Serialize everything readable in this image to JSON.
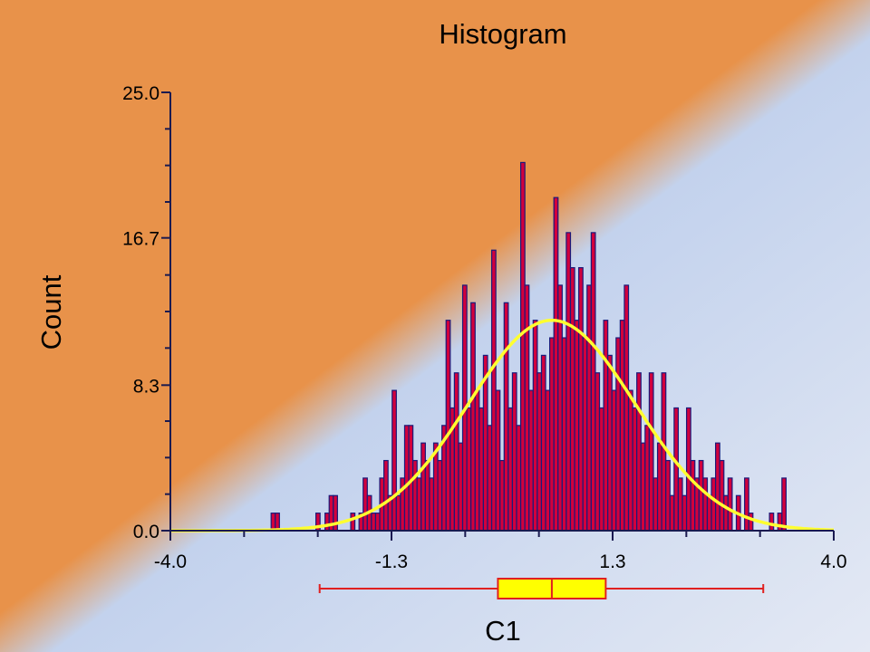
{
  "chart_data": {
    "type": "bar",
    "title": "Histogram",
    "xlabel": "C1",
    "ylabel": "Count",
    "xlim": [
      -4.0,
      4.0
    ],
    "ylim": [
      0.0,
      25.0
    ],
    "x_ticks": [
      "-4.0",
      "-1.3",
      "1.3",
      "4.0"
    ],
    "y_ticks": [
      "0.0",
      "8.3",
      "16.7",
      "25.0"
    ],
    "grid": false,
    "series": [
      {
        "type": "histogram",
        "bins": [
          {
            "x": -2.76,
            "y": 1
          },
          {
            "x": -2.71,
            "y": 1
          },
          {
            "x": -2.22,
            "y": 1
          },
          {
            "x": -2.11,
            "y": 1
          },
          {
            "x": -2.06,
            "y": 2
          },
          {
            "x": -2.01,
            "y": 2
          },
          {
            "x": -1.8,
            "y": 1
          },
          {
            "x": -1.7,
            "y": 1
          },
          {
            "x": -1.65,
            "y": 3
          },
          {
            "x": -1.6,
            "y": 2
          },
          {
            "x": -1.55,
            "y": 1
          },
          {
            "x": -1.5,
            "y": 1
          },
          {
            "x": -1.45,
            "y": 3
          },
          {
            "x": -1.4,
            "y": 4
          },
          {
            "x": -1.35,
            "y": 2
          },
          {
            "x": -1.3,
            "y": 8
          },
          {
            "x": -1.25,
            "y": 2
          },
          {
            "x": -1.2,
            "y": 3
          },
          {
            "x": -1.15,
            "y": 6
          },
          {
            "x": -1.1,
            "y": 6
          },
          {
            "x": -1.05,
            "y": 4
          },
          {
            "x": -1.0,
            "y": 3
          },
          {
            "x": -0.95,
            "y": 5
          },
          {
            "x": -0.9,
            "y": 4
          },
          {
            "x": -0.85,
            "y": 3
          },
          {
            "x": -0.8,
            "y": 5
          },
          {
            "x": -0.75,
            "y": 4
          },
          {
            "x": -0.7,
            "y": 6
          },
          {
            "x": -0.65,
            "y": 12
          },
          {
            "x": -0.6,
            "y": 7
          },
          {
            "x": -0.55,
            "y": 9
          },
          {
            "x": -0.5,
            "y": 5
          },
          {
            "x": -0.45,
            "y": 14
          },
          {
            "x": -0.4,
            "y": 7
          },
          {
            "x": -0.35,
            "y": 13
          },
          {
            "x": -0.3,
            "y": 8
          },
          {
            "x": -0.25,
            "y": 7
          },
          {
            "x": -0.2,
            "y": 10
          },
          {
            "x": -0.15,
            "y": 6
          },
          {
            "x": -0.1,
            "y": 16
          },
          {
            "x": -0.05,
            "y": 8
          },
          {
            "x": 0.0,
            "y": 4
          },
          {
            "x": 0.05,
            "y": 13
          },
          {
            "x": 0.1,
            "y": 7
          },
          {
            "x": 0.15,
            "y": 9
          },
          {
            "x": 0.2,
            "y": 6
          },
          {
            "x": 0.25,
            "y": 21
          },
          {
            "x": 0.3,
            "y": 14
          },
          {
            "x": 0.35,
            "y": 8
          },
          {
            "x": 0.4,
            "y": 12
          },
          {
            "x": 0.45,
            "y": 9
          },
          {
            "x": 0.5,
            "y": 10
          },
          {
            "x": 0.55,
            "y": 8
          },
          {
            "x": 0.6,
            "y": 11
          },
          {
            "x": 0.65,
            "y": 19
          },
          {
            "x": 0.7,
            "y": 14
          },
          {
            "x": 0.75,
            "y": 11
          },
          {
            "x": 0.8,
            "y": 17
          },
          {
            "x": 0.85,
            "y": 15
          },
          {
            "x": 0.9,
            "y": 12
          },
          {
            "x": 0.95,
            "y": 15
          },
          {
            "x": 1.0,
            "y": 11
          },
          {
            "x": 1.05,
            "y": 14
          },
          {
            "x": 1.1,
            "y": 17
          },
          {
            "x": 1.15,
            "y": 9
          },
          {
            "x": 1.2,
            "y": 7
          },
          {
            "x": 1.25,
            "y": 12
          },
          {
            "x": 1.3,
            "y": 10
          },
          {
            "x": 1.35,
            "y": 8
          },
          {
            "x": 1.4,
            "y": 11
          },
          {
            "x": 1.45,
            "y": 12
          },
          {
            "x": 1.5,
            "y": 14
          },
          {
            "x": 1.55,
            "y": 8
          },
          {
            "x": 1.6,
            "y": 7
          },
          {
            "x": 1.65,
            "y": 9
          },
          {
            "x": 1.7,
            "y": 5
          },
          {
            "x": 1.75,
            "y": 6
          },
          {
            "x": 1.8,
            "y": 9
          },
          {
            "x": 1.85,
            "y": 3
          },
          {
            "x": 1.9,
            "y": 5
          },
          {
            "x": 1.95,
            "y": 9
          },
          {
            "x": 2.0,
            "y": 4
          },
          {
            "x": 2.05,
            "y": 2
          },
          {
            "x": 2.1,
            "y": 7
          },
          {
            "x": 2.15,
            "y": 3
          },
          {
            "x": 2.2,
            "y": 2
          },
          {
            "x": 2.25,
            "y": 7
          },
          {
            "x": 2.3,
            "y": 4
          },
          {
            "x": 2.35,
            "y": 3
          },
          {
            "x": 2.4,
            "y": 4
          },
          {
            "x": 2.45,
            "y": 3
          },
          {
            "x": 2.5,
            "y": 2
          },
          {
            "x": 2.55,
            "y": 3
          },
          {
            "x": 2.6,
            "y": 5
          },
          {
            "x": 2.65,
            "y": 4
          },
          {
            "x": 2.7,
            "y": 2
          },
          {
            "x": 2.75,
            "y": 3
          },
          {
            "x": 2.85,
            "y": 2
          },
          {
            "x": 2.95,
            "y": 3
          },
          {
            "x": 3.0,
            "y": 1
          },
          {
            "x": 3.25,
            "y": 1
          },
          {
            "x": 3.35,
            "y": 1
          },
          {
            "x": 3.4,
            "y": 3
          }
        ],
        "bin_width": 0.05,
        "color": "#d2003c",
        "outline_color": "#1a1a7a"
      },
      {
        "type": "normal_curve",
        "mean": 0.6,
        "sd": 1.0,
        "peak": 12.0,
        "color": "#ffff30"
      }
    ],
    "boxplot": {
      "min": -2.2,
      "q1": -0.05,
      "median": 0.6,
      "q3": 1.25,
      "max": 3.15,
      "box_color": "#ffff00",
      "whisker_color": "#e02020"
    },
    "background": {
      "top_left": "#e8924a",
      "bottom_right": "#c6d4ee"
    }
  }
}
